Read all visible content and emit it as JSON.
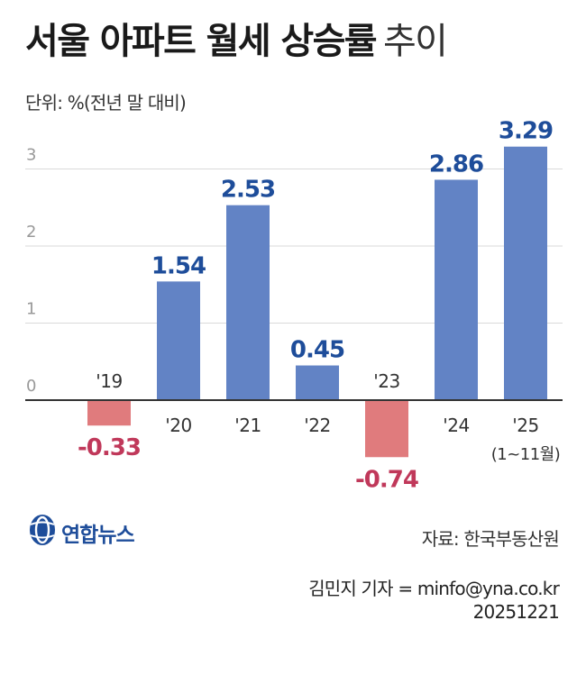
{
  "header": {
    "title_bold": "서울 아파트 월세 상승률",
    "title_light": "추이",
    "unit_label": "단위: %(전년 말 대비)"
  },
  "chart_data": {
    "type": "bar",
    "categories": [
      "'19",
      "'20",
      "'21",
      "'22",
      "'23",
      "'24",
      "'25"
    ],
    "category_sublabels": [
      "",
      "",
      "",
      "",
      "",
      "",
      "(1~11월)"
    ],
    "values": [
      -0.33,
      1.54,
      2.53,
      0.45,
      -0.74,
      2.86,
      3.29
    ],
    "value_labels": [
      "-0.33",
      "1.54",
      "2.53",
      "0.45",
      "-0.74",
      "2.86",
      "3.29"
    ],
    "ylim": [
      -1,
      3.3
    ],
    "yticks": [
      0,
      1,
      2,
      3
    ],
    "ytick_labels": [
      "0",
      "1",
      "2",
      "3"
    ],
    "grid": true,
    "colors": {
      "positive_bar": "#6283c5",
      "negative_bar": "#e07b7d",
      "positive_label": "#1e4d9a",
      "negative_label": "#c0385a",
      "gridline": "#d9d9d9",
      "axis": "#333333",
      "tick_label": "#999999",
      "category_label": "#333333"
    }
  },
  "logo": {
    "name": "연합뉴스",
    "icon": "yonhap-globe-logo-icon"
  },
  "source": "자료: 한국부동산원",
  "credit": {
    "byline": "김민지 기자 = minfo@yna.co.kr",
    "date": "20251221"
  }
}
